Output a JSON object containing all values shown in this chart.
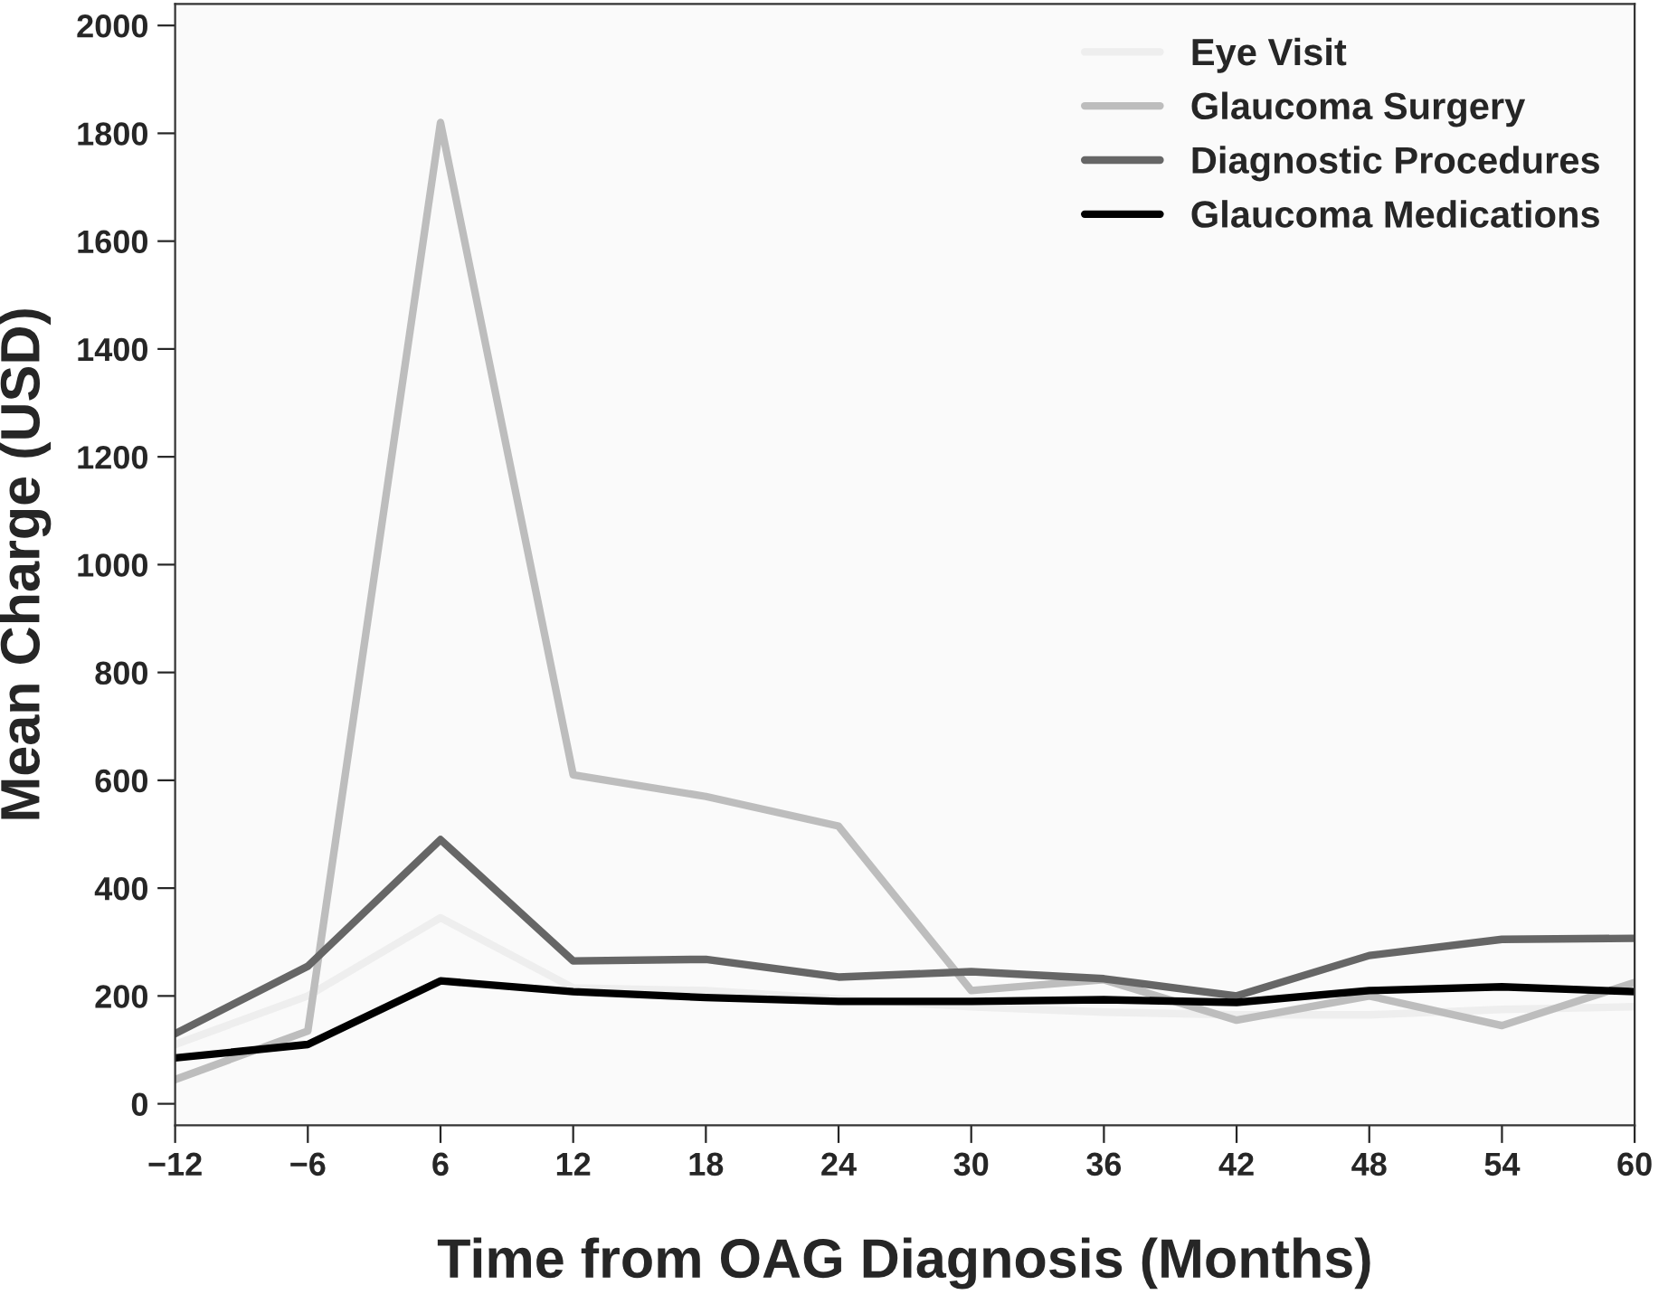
{
  "chart_data": {
    "type": "line",
    "xlabel": "Time from OAG Diagnosis (Months)",
    "ylabel": "Mean Charge (USD)",
    "categories": [
      "−12",
      "−6",
      "6",
      "12",
      "18",
      "24",
      "30",
      "36",
      "42",
      "48",
      "54",
      "60"
    ],
    "series": [
      {
        "name": "Eye Visit",
        "color": "#eeeeee",
        "values": [
          110,
          200,
          345,
          215,
          210,
          195,
          180,
          170,
          165,
          165,
          175,
          180
        ]
      },
      {
        "name": "Glaucoma Surgery",
        "color": "#bdbdbd",
        "values": [
          45,
          135,
          1820,
          610,
          570,
          515,
          210,
          230,
          155,
          200,
          145,
          225
        ]
      },
      {
        "name": "Diagnostic Procedures",
        "color": "#666666",
        "values": [
          130,
          255,
          490,
          265,
          268,
          235,
          245,
          232,
          200,
          275,
          305,
          307
        ]
      },
      {
        "name": "Glaucoma Medications",
        "color": "#000000",
        "values": [
          85,
          110,
          228,
          208,
          197,
          190,
          190,
          193,
          188,
          210,
          217,
          208
        ]
      }
    ],
    "ylim": [
      -40,
      2040
    ],
    "yticks": [
      0,
      200,
      400,
      600,
      800,
      1000,
      1200,
      1400,
      1600,
      1800,
      2000
    ],
    "legend": "top right",
    "grid": false,
    "marker": "none",
    "line_style": "solid"
  }
}
